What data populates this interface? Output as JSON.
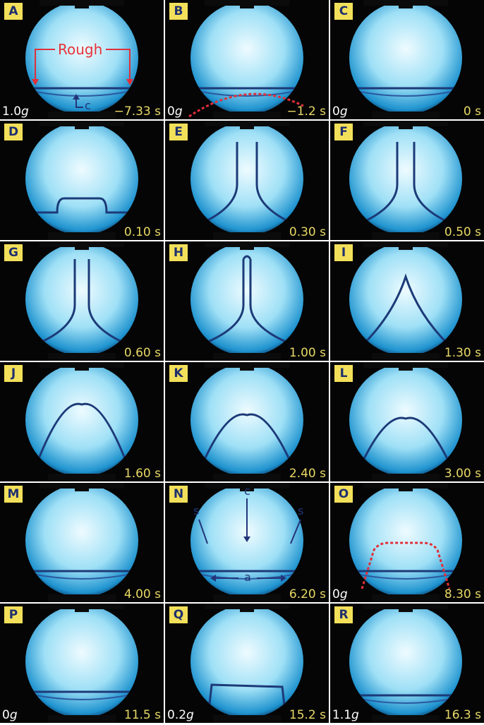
{
  "panels": [
    {
      "letter": "A",
      "time": "−7.33 s",
      "gravity_num": "1.0",
      "gravity_unit": "g",
      "labels": {
        "rough": "Rough",
        "c": "c"
      }
    },
    {
      "letter": "B",
      "time": "−1.2 s",
      "gravity_num": "0",
      "gravity_unit": "g"
    },
    {
      "letter": "C",
      "time": "0 s",
      "gravity_num": "0",
      "gravity_unit": "g"
    },
    {
      "letter": "D",
      "time": "0.10 s"
    },
    {
      "letter": "E",
      "time": "0.30 s"
    },
    {
      "letter": "F",
      "time": "0.50 s"
    },
    {
      "letter": "G",
      "time": "0.60 s"
    },
    {
      "letter": "H",
      "time": "1.00 s"
    },
    {
      "letter": "I",
      "time": "1.30 s"
    },
    {
      "letter": "J",
      "time": "1.60 s"
    },
    {
      "letter": "K",
      "time": "2.40 s"
    },
    {
      "letter": "L",
      "time": "3.00 s"
    },
    {
      "letter": "M",
      "time": "4.00 s"
    },
    {
      "letter": "N",
      "time": "6.20 s",
      "labels": {
        "c": "c",
        "s_left": "s",
        "s_right": "s",
        "a": "a"
      }
    },
    {
      "letter": "O",
      "time": "8.30 s",
      "gravity_num": "0",
      "gravity_unit": "g"
    },
    {
      "letter": "P",
      "time": "11.5 s",
      "gravity_num": "0",
      "gravity_unit": "g"
    },
    {
      "letter": "Q",
      "time": "15.2 s",
      "gravity_num": "0.2",
      "gravity_unit": "g"
    },
    {
      "letter": "R",
      "time": "16.3 s",
      "gravity_num": "1.1",
      "gravity_unit": "g"
    }
  ],
  "colors": {
    "letter_bg": "#f3e05a",
    "letter_text": "#1f2f6e",
    "time_text": "#e8d866",
    "gravity_text": "#ffffff",
    "interface_line": "#1c3a78",
    "dotted_trace": "#e0303a",
    "annotation": "#23357a",
    "glow_center": "#eefbff",
    "glow_edge": "#1f93cf"
  }
}
